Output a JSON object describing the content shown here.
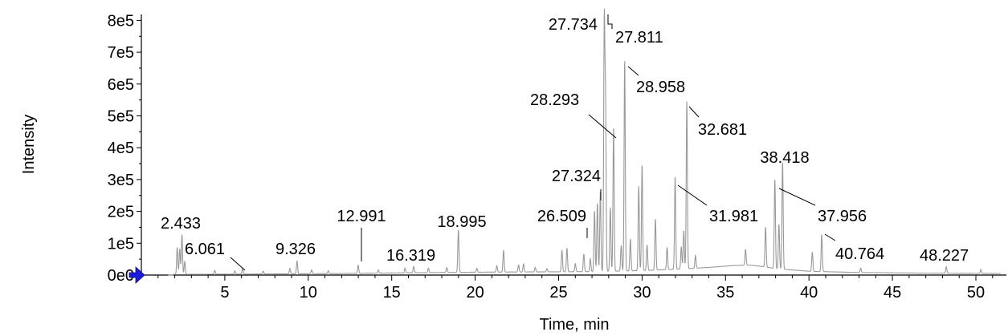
{
  "chart_data": {
    "type": "line",
    "title": "",
    "xlabel": "Time, min",
    "ylabel": "Intensity",
    "xlim": [
      0,
      51.5
    ],
    "ylim": [
      0,
      820000
    ],
    "x_ticks": [
      5,
      10,
      15,
      20,
      25,
      30,
      35,
      40,
      45,
      50
    ],
    "x_tick_labels": [
      "5",
      "10",
      "15",
      "20",
      "25",
      "30",
      "35",
      "40",
      "45",
      "50"
    ],
    "y_ticks": [
      0,
      100000,
      200000,
      300000,
      400000,
      500000,
      600000,
      700000,
      800000
    ],
    "y_tick_labels": [
      "0e0",
      "1e5",
      "2e5",
      "3e5",
      "4e5",
      "5e5",
      "6e5",
      "7e5",
      "8e5"
    ],
    "grid": false,
    "line_color": "#999999",
    "marker_color": "#1a1adb",
    "baseline": [
      [
        0.0,
        1500
      ],
      [
        4,
        2500
      ],
      [
        8,
        3500
      ],
      [
        12,
        5000
      ],
      [
        16,
        7000
      ],
      [
        20,
        9000
      ],
      [
        24,
        10000
      ],
      [
        27,
        11000
      ],
      [
        30,
        14000
      ],
      [
        32,
        18000
      ],
      [
        34,
        24000
      ],
      [
        35.5,
        30000
      ],
      [
        36.5,
        31000
      ],
      [
        37.2,
        27000
      ],
      [
        38,
        20000
      ],
      [
        40,
        12000
      ],
      [
        43,
        8000
      ],
      [
        47,
        6000
      ],
      [
        51.5,
        5000
      ]
    ],
    "peaks": [
      {
        "rt": 2.15,
        "height": 85000
      },
      {
        "rt": 2.3,
        "height": 80000
      },
      {
        "rt": 2.433,
        "height": 125000
      },
      {
        "rt": 2.6,
        "height": 40000
      },
      {
        "rt": 4.4,
        "height": 12000
      },
      {
        "rt": 5.6,
        "height": 10000
      },
      {
        "rt": 6.061,
        "height": 18000
      },
      {
        "rt": 7.3,
        "height": 9000
      },
      {
        "rt": 8.9,
        "height": 17000
      },
      {
        "rt": 9.326,
        "height": 40000
      },
      {
        "rt": 10.2,
        "height": 12000
      },
      {
        "rt": 11.2,
        "height": 9000
      },
      {
        "rt": 12.991,
        "height": 25000
      },
      {
        "rt": 14.2,
        "height": 10000
      },
      {
        "rt": 15.8,
        "height": 15000
      },
      {
        "rt": 16.319,
        "height": 20000
      },
      {
        "rt": 17.2,
        "height": 14000
      },
      {
        "rt": 18.3,
        "height": 15000
      },
      {
        "rt": 18.995,
        "height": 133000
      },
      {
        "rt": 20.1,
        "height": 12000
      },
      {
        "rt": 21.3,
        "height": 20000
      },
      {
        "rt": 21.7,
        "height": 68000
      },
      {
        "rt": 22.6,
        "height": 22000
      },
      {
        "rt": 22.9,
        "height": 25000
      },
      {
        "rt": 23.6,
        "height": 14000
      },
      {
        "rt": 24.3,
        "height": 10000
      },
      {
        "rt": 25.2,
        "height": 68000
      },
      {
        "rt": 25.5,
        "height": 74000
      },
      {
        "rt": 26.0,
        "height": 25000
      },
      {
        "rt": 26.509,
        "height": 55000
      },
      {
        "rt": 26.9,
        "height": 40000
      },
      {
        "rt": 27.15,
        "height": 190000
      },
      {
        "rt": 27.324,
        "height": 215000
      },
      {
        "rt": 27.5,
        "height": 250000
      },
      {
        "rt": 27.734,
        "height": 770000
      },
      {
        "rt": 27.811,
        "height": 520000
      },
      {
        "rt": 28.1,
        "height": 200000
      },
      {
        "rt": 28.293,
        "height": 450000
      },
      {
        "rt": 28.75,
        "height": 80000
      },
      {
        "rt": 28.958,
        "height": 660000
      },
      {
        "rt": 29.3,
        "height": 100000
      },
      {
        "rt": 29.8,
        "height": 265000
      },
      {
        "rt": 30.0,
        "height": 330000
      },
      {
        "rt": 30.3,
        "height": 80000
      },
      {
        "rt": 30.8,
        "height": 160000
      },
      {
        "rt": 31.5,
        "height": 70000
      },
      {
        "rt": 31.981,
        "height": 290000
      },
      {
        "rt": 32.35,
        "height": 70000
      },
      {
        "rt": 32.5,
        "height": 120000
      },
      {
        "rt": 32.681,
        "height": 525000
      },
      {
        "rt": 33.2,
        "height": 40000
      },
      {
        "rt": 36.2,
        "height": 50000
      },
      {
        "rt": 37.4,
        "height": 125000
      },
      {
        "rt": 37.956,
        "height": 280000
      },
      {
        "rt": 38.2,
        "height": 140000
      },
      {
        "rt": 38.418,
        "height": 335000
      },
      {
        "rt": 40.2,
        "height": 60000
      },
      {
        "rt": 40.764,
        "height": 115000
      },
      {
        "rt": 43.1,
        "height": 14000
      },
      {
        "rt": 48.227,
        "height": 20000
      },
      {
        "rt": 50.3,
        "height": 12000
      }
    ],
    "annotations": [
      {
        "label": "2.433",
        "rt": 2.433
      },
      {
        "label": "6.061",
        "rt": 6.061
      },
      {
        "label": "9.326",
        "rt": 9.326
      },
      {
        "label": "12.991",
        "rt": 12.991
      },
      {
        "label": "16.319",
        "rt": 16.319
      },
      {
        "label": "18.995",
        "rt": 18.995
      },
      {
        "label": "26.509",
        "rt": 26.509
      },
      {
        "label": "27.324",
        "rt": 27.324
      },
      {
        "label": "27.734",
        "rt": 27.734
      },
      {
        "label": "27.811",
        "rt": 27.811
      },
      {
        "label": "28.293",
        "rt": 28.293
      },
      {
        "label": "28.958",
        "rt": 28.958
      },
      {
        "label": "32.681",
        "rt": 32.681
      },
      {
        "label": "31.981",
        "rt": 31.981
      },
      {
        "label": "38.418",
        "rt": 38.418
      },
      {
        "label": "37.956",
        "rt": 37.956
      },
      {
        "label": "40.764",
        "rt": 40.764
      },
      {
        "label": "48.227",
        "rt": 48.227
      }
    ]
  }
}
